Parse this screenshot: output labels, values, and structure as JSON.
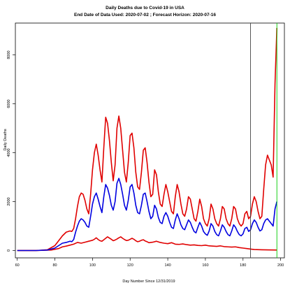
{
  "chart_data": {
    "type": "line",
    "title": "Daily Deaths due to Covid-19 in USA",
    "subtitle": "End Date of Data Used: 2020-07-02 ; Forecast Horizon: 2020-07-16",
    "xlabel": "Day Number Since 12/31/2019",
    "ylabel": "Daily Deaths",
    "xlim": [
      59,
      202
    ],
    "ylim": [
      -300,
      9300
    ],
    "x_ticks": [
      60,
      80,
      100,
      120,
      140,
      160,
      180,
      200
    ],
    "y_ticks": [
      0,
      2000,
      4000,
      6000,
      8000
    ],
    "grid": false,
    "vertical_lines": [
      {
        "x": 184,
        "color": "#444444"
      },
      {
        "x": 198,
        "color": "#00cc00"
      }
    ],
    "series": [
      {
        "color": "#e00000",
        "points": [
          [
            60,
            0
          ],
          [
            70,
            0
          ],
          [
            78,
            20
          ],
          [
            82,
            80
          ],
          [
            84,
            150
          ],
          [
            86,
            180
          ],
          [
            88,
            220
          ],
          [
            90,
            260
          ],
          [
            92,
            330
          ],
          [
            94,
            300
          ],
          [
            96,
            340
          ],
          [
            98,
            380
          ],
          [
            100,
            420
          ],
          [
            101,
            460
          ],
          [
            102,
            520
          ],
          [
            103,
            450
          ],
          [
            104,
            400
          ],
          [
            105,
            380
          ],
          [
            106,
            440
          ],
          [
            107,
            500
          ],
          [
            108,
            560
          ],
          [
            109,
            510
          ],
          [
            110,
            460
          ],
          [
            111,
            400
          ],
          [
            112,
            430
          ],
          [
            113,
            470
          ],
          [
            114,
            520
          ],
          [
            115,
            560
          ],
          [
            116,
            500
          ],
          [
            117,
            450
          ],
          [
            118,
            410
          ],
          [
            119,
            420
          ],
          [
            120,
            460
          ],
          [
            121,
            500
          ],
          [
            122,
            460
          ],
          [
            123,
            400
          ],
          [
            124,
            360
          ],
          [
            125,
            380
          ],
          [
            126,
            420
          ],
          [
            127,
            440
          ],
          [
            128,
            390
          ],
          [
            129,
            360
          ],
          [
            130,
            320
          ],
          [
            132,
            340
          ],
          [
            134,
            380
          ],
          [
            136,
            330
          ],
          [
            138,
            300
          ],
          [
            140,
            280
          ],
          [
            142,
            320
          ],
          [
            144,
            260
          ],
          [
            146,
            250
          ],
          [
            148,
            270
          ],
          [
            150,
            240
          ],
          [
            152,
            220
          ],
          [
            154,
            230
          ],
          [
            156,
            210
          ],
          [
            158,
            200
          ],
          [
            160,
            220
          ],
          [
            162,
            190
          ],
          [
            164,
            180
          ],
          [
            166,
            170
          ],
          [
            168,
            190
          ],
          [
            170,
            160
          ],
          [
            172,
            150
          ],
          [
            174,
            140
          ],
          [
            176,
            150
          ],
          [
            178,
            120
          ],
          [
            180,
            100
          ],
          [
            182,
            80
          ],
          [
            184,
            60
          ],
          [
            186,
            40
          ],
          [
            190,
            30
          ],
          [
            198,
            20
          ]
        ]
      },
      {
        "color": "#e00000",
        "points": [
          [
            60,
            0
          ],
          [
            70,
            0
          ],
          [
            76,
            30
          ],
          [
            80,
            200
          ],
          [
            82,
            400
          ],
          [
            84,
            600
          ],
          [
            86,
            750
          ],
          [
            88,
            800
          ],
          [
            89,
            780
          ],
          [
            90,
            900
          ],
          [
            91,
            1300
          ],
          [
            92,
            1800
          ],
          [
            93,
            2200
          ],
          [
            94,
            2350
          ],
          [
            95,
            2300
          ],
          [
            96,
            2050
          ],
          [
            97,
            1700
          ],
          [
            98,
            1500
          ],
          [
            99,
            2300
          ],
          [
            100,
            3300
          ],
          [
            101,
            4000
          ],
          [
            102,
            4350
          ],
          [
            103,
            3900
          ],
          [
            104,
            3300
          ],
          [
            105,
            2800
          ],
          [
            106,
            4200
          ],
          [
            107,
            5450
          ],
          [
            108,
            5200
          ],
          [
            109,
            4500
          ],
          [
            110,
            3600
          ],
          [
            111,
            2850
          ],
          [
            112,
            3500
          ],
          [
            113,
            5000
          ],
          [
            114,
            5500
          ],
          [
            115,
            5000
          ],
          [
            116,
            4100
          ],
          [
            117,
            3200
          ],
          [
            118,
            2800
          ],
          [
            119,
            3600
          ],
          [
            120,
            4700
          ],
          [
            121,
            4800
          ],
          [
            122,
            4200
          ],
          [
            123,
            3200
          ],
          [
            124,
            2600
          ],
          [
            125,
            2500
          ],
          [
            126,
            3200
          ],
          [
            127,
            4100
          ],
          [
            128,
            4200
          ],
          [
            129,
            3600
          ],
          [
            130,
            2800
          ],
          [
            131,
            2200
          ],
          [
            132,
            2300
          ],
          [
            133,
            3300
          ],
          [
            134,
            3100
          ],
          [
            135,
            2400
          ],
          [
            136,
            1900
          ],
          [
            137,
            1800
          ],
          [
            138,
            2300
          ],
          [
            139,
            2700
          ],
          [
            140,
            2400
          ],
          [
            141,
            2000
          ],
          [
            142,
            1600
          ],
          [
            143,
            1500
          ],
          [
            144,
            2200
          ],
          [
            145,
            2700
          ],
          [
            146,
            2400
          ],
          [
            147,
            1900
          ],
          [
            148,
            1500
          ],
          [
            149,
            1400
          ],
          [
            150,
            1700
          ],
          [
            151,
            2200
          ],
          [
            152,
            2100
          ],
          [
            153,
            1700
          ],
          [
            154,
            1300
          ],
          [
            155,
            1200
          ],
          [
            156,
            1600
          ],
          [
            157,
            2100
          ],
          [
            158,
            1800
          ],
          [
            159,
            1300
          ],
          [
            160,
            1100
          ],
          [
            161,
            1000
          ],
          [
            162,
            1300
          ],
          [
            163,
            1900
          ],
          [
            164,
            1700
          ],
          [
            165,
            1300
          ],
          [
            166,
            1100
          ],
          [
            167,
            1000
          ],
          [
            168,
            1300
          ],
          [
            169,
            1800
          ],
          [
            170,
            1700
          ],
          [
            171,
            1300
          ],
          [
            172,
            1100
          ],
          [
            173,
            1000
          ],
          [
            174,
            1300
          ],
          [
            175,
            1800
          ],
          [
            176,
            1700
          ],
          [
            177,
            1300
          ],
          [
            178,
            1100
          ],
          [
            179,
            1000
          ],
          [
            180,
            1100
          ],
          [
            181,
            1500
          ],
          [
            182,
            1600
          ],
          [
            183,
            1300
          ],
          [
            184,
            1400
          ],
          [
            185,
            1900
          ],
          [
            186,
            2200
          ],
          [
            187,
            2000
          ],
          [
            188,
            1600
          ],
          [
            189,
            1300
          ],
          [
            190,
            1400
          ],
          [
            191,
            2500
          ],
          [
            192,
            3500
          ],
          [
            193,
            3900
          ],
          [
            194,
            3700
          ],
          [
            195,
            3500
          ],
          [
            196,
            3000
          ],
          [
            197,
            6800
          ],
          [
            198,
            9100
          ]
        ]
      },
      {
        "color": "#0000e0",
        "points": [
          [
            60,
            0
          ],
          [
            70,
            0
          ],
          [
            76,
            20
          ],
          [
            80,
            100
          ],
          [
            82,
            200
          ],
          [
            84,
            300
          ],
          [
            86,
            330
          ],
          [
            88,
            380
          ],
          [
            89,
            360
          ],
          [
            90,
            450
          ],
          [
            91,
            750
          ],
          [
            92,
            1000
          ],
          [
            93,
            1200
          ],
          [
            94,
            1300
          ],
          [
            95,
            1250
          ],
          [
            96,
            1150
          ],
          [
            97,
            1000
          ],
          [
            98,
            950
          ],
          [
            99,
            1400
          ],
          [
            100,
            1900
          ],
          [
            101,
            2200
          ],
          [
            102,
            2350
          ],
          [
            103,
            2100
          ],
          [
            104,
            1800
          ],
          [
            105,
            1550
          ],
          [
            106,
            2200
          ],
          [
            107,
            2700
          ],
          [
            108,
            2550
          ],
          [
            109,
            2250
          ],
          [
            110,
            1850
          ],
          [
            111,
            1650
          ],
          [
            112,
            2000
          ],
          [
            113,
            2750
          ],
          [
            114,
            2950
          ],
          [
            115,
            2700
          ],
          [
            116,
            2300
          ],
          [
            117,
            1850
          ],
          [
            118,
            1650
          ],
          [
            119,
            2050
          ],
          [
            120,
            2600
          ],
          [
            121,
            2700
          ],
          [
            122,
            2350
          ],
          [
            123,
            1850
          ],
          [
            124,
            1550
          ],
          [
            125,
            1500
          ],
          [
            126,
            1850
          ],
          [
            127,
            2300
          ],
          [
            128,
            2350
          ],
          [
            129,
            2000
          ],
          [
            130,
            1600
          ],
          [
            131,
            1300
          ],
          [
            132,
            1400
          ],
          [
            133,
            1850
          ],
          [
            134,
            1700
          ],
          [
            135,
            1350
          ],
          [
            136,
            1150
          ],
          [
            137,
            1100
          ],
          [
            138,
            1400
          ],
          [
            139,
            1550
          ],
          [
            140,
            1400
          ],
          [
            141,
            1150
          ],
          [
            142,
            950
          ],
          [
            143,
            900
          ],
          [
            144,
            1250
          ],
          [
            145,
            1500
          ],
          [
            146,
            1300
          ],
          [
            147,
            1050
          ],
          [
            148,
            900
          ],
          [
            149,
            850
          ],
          [
            150,
            1050
          ],
          [
            151,
            1250
          ],
          [
            152,
            1150
          ],
          [
            153,
            950
          ],
          [
            154,
            780
          ],
          [
            155,
            720
          ],
          [
            156,
            950
          ],
          [
            157,
            1150
          ],
          [
            158,
            1000
          ],
          [
            159,
            780
          ],
          [
            160,
            680
          ],
          [
            161,
            620
          ],
          [
            162,
            800
          ],
          [
            163,
            1100
          ],
          [
            164,
            1000
          ],
          [
            165,
            780
          ],
          [
            166,
            650
          ],
          [
            167,
            600
          ],
          [
            168,
            800
          ],
          [
            169,
            1050
          ],
          [
            170,
            950
          ],
          [
            171,
            780
          ],
          [
            172,
            650
          ],
          [
            173,
            600
          ],
          [
            174,
            800
          ],
          [
            175,
            1050
          ],
          [
            176,
            950
          ],
          [
            177,
            780
          ],
          [
            178,
            650
          ],
          [
            179,
            600
          ],
          [
            180,
            680
          ],
          [
            181,
            900
          ],
          [
            182,
            950
          ],
          [
            183,
            780
          ],
          [
            184,
            850
          ],
          [
            185,
            1100
          ],
          [
            186,
            1250
          ],
          [
            187,
            1150
          ],
          [
            188,
            950
          ],
          [
            189,
            800
          ],
          [
            190,
            850
          ],
          [
            191,
            1100
          ],
          [
            192,
            1250
          ],
          [
            193,
            1300
          ],
          [
            194,
            1200
          ],
          [
            195,
            1100
          ],
          [
            196,
            1000
          ],
          [
            197,
            1700
          ],
          [
            198,
            2000
          ]
        ]
      }
    ]
  }
}
